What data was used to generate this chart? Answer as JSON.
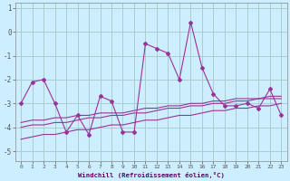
{
  "xlabel": "Windchill (Refroidissement éolien,°C)",
  "background_color": "#cceeff",
  "grid_color": "#aacccc",
  "line_color": "#993399",
  "hours": [
    0,
    1,
    2,
    3,
    4,
    5,
    6,
    7,
    8,
    9,
    10,
    11,
    12,
    13,
    14,
    15,
    16,
    17,
    18,
    19,
    20,
    21,
    22,
    23
  ],
  "temp_main": [
    -3.0,
    -2.1,
    -2.0,
    -3.0,
    -4.2,
    -3.5,
    -4.3,
    -2.7,
    -2.9,
    -4.2,
    -4.2,
    -0.5,
    -0.7,
    -0.9,
    -2.0,
    0.4,
    -1.5,
    -2.6,
    -3.1,
    -3.1,
    -3.0,
    -3.2,
    -2.4,
    -3.5
  ],
  "band_upper": [
    -3.8,
    -3.7,
    -3.7,
    -3.6,
    -3.6,
    -3.5,
    -3.5,
    -3.4,
    -3.4,
    -3.4,
    -3.3,
    -3.2,
    -3.2,
    -3.1,
    -3.1,
    -3.0,
    -3.0,
    -2.9,
    -2.9,
    -2.8,
    -2.8,
    -2.8,
    -2.7,
    -2.7
  ],
  "band_mid": [
    -4.0,
    -3.9,
    -3.9,
    -3.8,
    -3.8,
    -3.7,
    -3.6,
    -3.6,
    -3.5,
    -3.5,
    -3.4,
    -3.4,
    -3.3,
    -3.2,
    -3.2,
    -3.1,
    -3.1,
    -3.0,
    -3.0,
    -2.9,
    -2.9,
    -2.8,
    -2.8,
    -2.8
  ],
  "band_lower": [
    -4.5,
    -4.4,
    -4.3,
    -4.3,
    -4.2,
    -4.1,
    -4.1,
    -4.0,
    -3.9,
    -3.9,
    -3.8,
    -3.7,
    -3.7,
    -3.6,
    -3.5,
    -3.5,
    -3.4,
    -3.3,
    -3.3,
    -3.2,
    -3.2,
    -3.1,
    -3.1,
    -3.0
  ],
  "ylim": [
    -5.4,
    1.2
  ],
  "yticks": [
    1,
    0,
    -1,
    -2,
    -3,
    -4,
    -5
  ]
}
